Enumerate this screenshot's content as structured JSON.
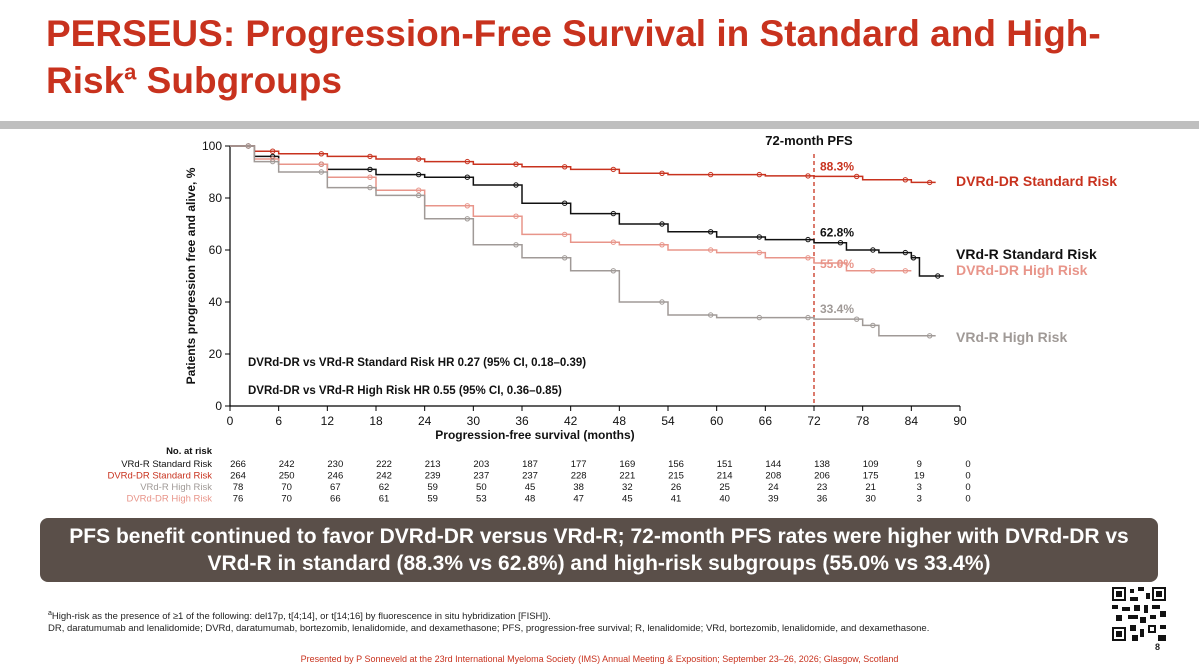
{
  "slide": {
    "title_main": "PERSEUS: Progression-Free Survival in Standard and High-Risk",
    "title_sup": "a",
    "title_end": " Subgroups",
    "banner": "PFS benefit continued to favor DVRd-DR versus VRd-R; 72-month PFS rates were higher with DVRd-DR vs VRd-R in standard (88.3% vs 62.8%) and high-risk subgroups (55.0% vs 33.4%)",
    "footnote_sup": "a",
    "footnote1": "High-risk as the presence of ≥1 of the following: del17p, t[4;14], or t[14;16] by fluorescence in situ hybridization [FISH]).",
    "footnote2": "DR, daratumumab and lenalidomide; DVRd, daratumumab, bortezomib, lenalidomide, and dexamethasone; PFS, progression-free survival; R, lenalidomide; VRd, bortezomib, lenalidomide, and dexamethasone.",
    "presenter": "Presented by P Sonneveld at the 23rd International Myeloma Society (IMS) Annual Meeting & Exposition; September 23–26, 2026; Glasgow, Scotland",
    "page_number": "8"
  },
  "colors": {
    "red": "#c8321e",
    "black": "#111111",
    "pink": "#e8958a",
    "gray": "#a09a97"
  },
  "chart_data": {
    "type": "line",
    "xlabel": "Progression-free survival (months)",
    "ylabel": "Patients progression free and alive, %",
    "xlim": [
      0,
      90
    ],
    "ylim": [
      0,
      100
    ],
    "xticks": [
      0,
      6,
      12,
      18,
      24,
      30,
      36,
      42,
      48,
      54,
      60,
      66,
      72,
      78,
      84,
      90
    ],
    "yticks": [
      0,
      20,
      40,
      60,
      80,
      100
    ],
    "reference_line": {
      "x": 72,
      "label": "72-month PFS"
    },
    "hr_text": [
      "DVRd-DR vs VRd-R Standard Risk HR 0.27 (95% CI, 0.18–0.39)",
      "DVRd-DR vs VRd-R High Risk HR 0.55 (95% CI, 0.36–0.85)"
    ],
    "series": [
      {
        "name": "DVRd-DR Standard Risk",
        "color": "#c8321e",
        "rate_label": "88.3%",
        "x": [
          0,
          3,
          6,
          12,
          18,
          24,
          30,
          36,
          42,
          48,
          54,
          60,
          66,
          72,
          78,
          84,
          87
        ],
        "y": [
          100,
          98,
          97,
          96,
          95,
          94,
          93,
          92,
          91,
          89.5,
          89,
          89,
          88.5,
          88.3,
          87,
          86,
          86
        ]
      },
      {
        "name": "VRd-R Standard Risk",
        "color": "#111111",
        "rate_label": "62.8%",
        "x": [
          0,
          3,
          6,
          12,
          18,
          24,
          30,
          36,
          42,
          48,
          54,
          60,
          66,
          72,
          76,
          80,
          84,
          85,
          88
        ],
        "y": [
          100,
          96,
          93,
          91,
          89,
          88,
          85,
          78,
          74,
          70,
          67,
          65,
          64,
          62.8,
          60,
          59,
          57,
          50,
          50
        ]
      },
      {
        "name": "DVRd-DR High Risk",
        "color": "#e8958a",
        "rate_label": "55.0%",
        "x": [
          0,
          3,
          6,
          12,
          18,
          24,
          30,
          36,
          42,
          48,
          54,
          60,
          66,
          72,
          76,
          80,
          84
        ],
        "y": [
          100,
          95,
          93,
          88,
          83,
          77,
          73,
          66,
          63,
          62,
          60,
          59,
          57,
          55,
          52,
          52,
          52
        ]
      },
      {
        "name": "VRd-R High Risk",
        "color": "#a09a97",
        "rate_label": "33.4%",
        "x": [
          0,
          3,
          6,
          12,
          18,
          24,
          30,
          36,
          42,
          48,
          54,
          60,
          66,
          72,
          78,
          80,
          87
        ],
        "y": [
          100,
          94,
          90,
          84,
          81,
          72,
          62,
          57,
          52,
          40,
          35,
          34,
          34,
          33.4,
          31,
          27,
          27
        ]
      }
    ],
    "at_risk": {
      "header": "No. at risk",
      "times": [
        0,
        6,
        12,
        18,
        24,
        30,
        36,
        42,
        48,
        54,
        60,
        66,
        72,
        78,
        84,
        90
      ],
      "rows": [
        {
          "label": "VRd-R Standard Risk",
          "color": "#111111",
          "values": [
            "266",
            "242",
            "230",
            "222",
            "213",
            "203",
            "187",
            "177",
            "169",
            "156",
            "151",
            "144",
            "138",
            "109",
            "9",
            "0"
          ]
        },
        {
          "label": "DVRd-DR Standard Risk",
          "color": "#c8321e",
          "values": [
            "264",
            "250",
            "246",
            "242",
            "239",
            "237",
            "237",
            "228",
            "221",
            "215",
            "214",
            "208",
            "206",
            "175",
            "19",
            "0"
          ]
        },
        {
          "label": "VRd-R High Risk",
          "color": "#a09a97",
          "values": [
            "78",
            "70",
            "67",
            "62",
            "59",
            "50",
            "45",
            "38",
            "32",
            "26",
            "25",
            "24",
            "23",
            "21",
            "3",
            "0"
          ]
        },
        {
          "label": "DVRd-DR High Risk",
          "color": "#e8958a",
          "values": [
            "76",
            "70",
            "66",
            "61",
            "59",
            "53",
            "48",
            "47",
            "45",
            "41",
            "40",
            "39",
            "36",
            "30",
            "3",
            "0"
          ]
        }
      ]
    }
  }
}
